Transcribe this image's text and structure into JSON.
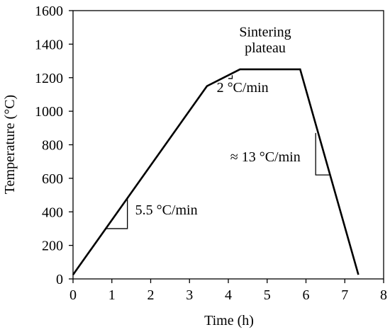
{
  "chart_data": {
    "type": "line",
    "title": "",
    "xlabel": "Time (h)",
    "ylabel": "Temperature (°C)",
    "xlim": [
      0,
      8
    ],
    "ylim": [
      0,
      1600
    ],
    "xticks": [
      0,
      1,
      2,
      3,
      4,
      5,
      6,
      7,
      8
    ],
    "yticks": [
      0,
      200,
      400,
      600,
      800,
      1000,
      1200,
      1400,
      1600
    ],
    "grid": false,
    "series": [
      {
        "x": [
          0,
          3.45,
          4.3,
          5.85,
          7.35
        ],
        "y": [
          25,
          1150,
          1250,
          1250,
          25
        ]
      }
    ],
    "slope_triangles": [
      {
        "x": [
          0.85,
          1.4
        ],
        "y": [
          300,
          480
        ]
      },
      {
        "x": [
          4.0,
          4.1
        ],
        "y": [
          1195,
          1215
        ]
      },
      {
        "x": [
          6.25,
          6.6
        ],
        "y": [
          870,
          620
        ]
      }
    ],
    "annotations": [
      {
        "text": "5.5 °C/min",
        "x": 1.6,
        "y": 385
      },
      {
        "text": "2 °C/min",
        "x": 3.7,
        "y": 1115
      },
      {
        "text": "≈ 13 °C/min",
        "x": 4.05,
        "y": 700
      },
      {
        "text": "Sintering",
        "x": 4.95,
        "y": 1445
      },
      {
        "text": "plateau",
        "x": 4.95,
        "y": 1350
      }
    ]
  }
}
